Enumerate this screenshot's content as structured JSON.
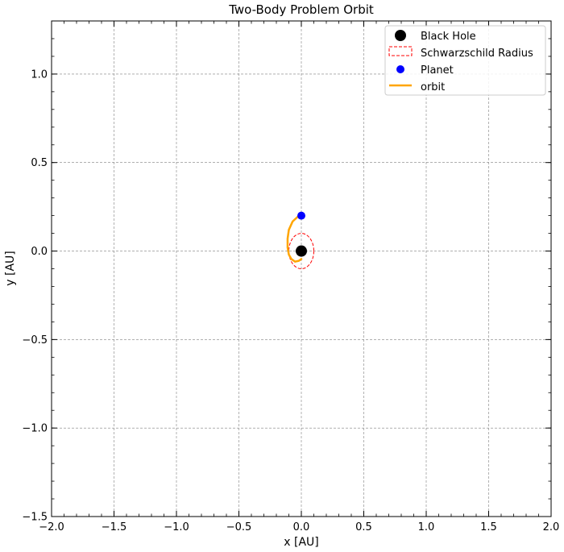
{
  "chart_data": {
    "type": "scatter",
    "title": "Two-Body Problem Orbit",
    "xlabel": "x [AU]",
    "ylabel": "y [AU]",
    "xlim": [
      -2.0,
      2.0
    ],
    "ylim": [
      -1.5,
      1.3
    ],
    "grid": true,
    "legend_position": "top-right",
    "x_ticks": [
      -2.0,
      -1.5,
      -1.0,
      -0.5,
      0.0,
      0.5,
      1.0,
      1.5,
      2.0
    ],
    "x_tick_labels": [
      "−2.0",
      "−1.5",
      "−1.0",
      "−0.5",
      "0.0",
      "0.5",
      "1.0",
      "1.5",
      "2.0"
    ],
    "y_ticks": [
      -1.5,
      -1.0,
      -0.5,
      0.0,
      0.5,
      1.0
    ],
    "y_tick_labels": [
      "−1.5",
      "−1.0",
      "−0.5",
      "0.0",
      "0.5",
      "1.0"
    ],
    "series": [
      {
        "name": "Black Hole",
        "kind": "marker",
        "color": "#000000",
        "x": [
          0.0
        ],
        "y": [
          0.0
        ]
      },
      {
        "name": "Schwarzschild Radius",
        "kind": "circle",
        "color": "#ff0000",
        "linestyle": "dashed",
        "center": [
          0.0,
          0.0
        ],
        "radius": 0.1
      },
      {
        "name": "Planet",
        "kind": "marker",
        "color": "#0000ff",
        "x": [
          0.0
        ],
        "y": [
          0.2
        ]
      },
      {
        "name": "orbit",
        "kind": "line",
        "color": "#ffa500",
        "x": [
          0.0,
          -0.03,
          -0.07,
          -0.1,
          -0.11,
          -0.11,
          -0.1,
          -0.08,
          -0.05,
          -0.02,
          0.0
        ],
        "y": [
          0.2,
          0.193,
          0.167,
          0.12,
          0.07,
          0.02,
          -0.02,
          -0.045,
          -0.06,
          -0.055,
          -0.045
        ]
      }
    ]
  }
}
